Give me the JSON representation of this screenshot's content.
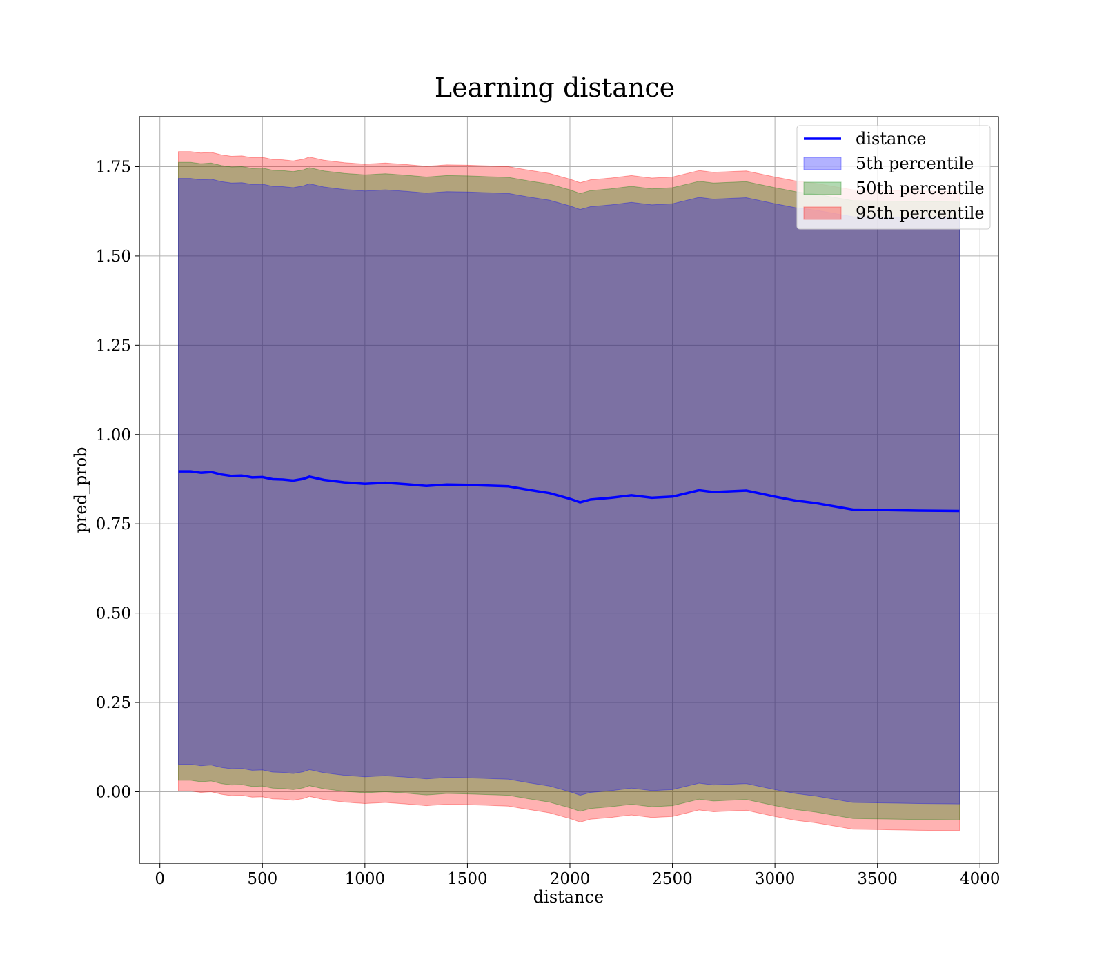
{
  "chart_data": {
    "type": "line",
    "title": "Learning distance",
    "xlabel": "distance",
    "ylabel": "pred_prob",
    "xlim": [
      -100,
      4090
    ],
    "ylim": [
      -0.2,
      1.89
    ],
    "xticks": [
      0,
      500,
      1000,
      1500,
      2000,
      2500,
      3000,
      3500,
      4000
    ],
    "xtick_labels": [
      "0",
      "500",
      "1000",
      "1500",
      "2000",
      "2500",
      "3000",
      "3500",
      "4000"
    ],
    "yticks": [
      0.0,
      0.25,
      0.5,
      0.75,
      1.0,
      1.25,
      1.5,
      1.75
    ],
    "ytick_labels": [
      "0.00",
      "0.25",
      "0.50",
      "0.75",
      "1.00",
      "1.25",
      "1.50",
      "1.75"
    ],
    "grid": true,
    "legend_position": "top-right",
    "x": [
      90,
      150,
      200,
      250,
      300,
      350,
      400,
      430,
      450,
      500,
      550,
      600,
      650,
      700,
      730,
      800,
      900,
      1000,
      1100,
      1200,
      1300,
      1400,
      1500,
      1600,
      1700,
      1800,
      1900,
      2000,
      2050,
      2100,
      2200,
      2300,
      2400,
      2500,
      2630,
      2700,
      2860,
      3000,
      3100,
      3200,
      3380,
      3500,
      3700,
      3900
    ],
    "series": [
      {
        "name": "distance",
        "kind": "line",
        "color": "#0000ff",
        "y": [
          0.897,
          0.897,
          0.893,
          0.895,
          0.888,
          0.884,
          0.885,
          0.882,
          0.88,
          0.881,
          0.875,
          0.874,
          0.871,
          0.876,
          0.882,
          0.873,
          0.866,
          0.862,
          0.865,
          0.861,
          0.856,
          0.86,
          0.859,
          0.857,
          0.855,
          0.845,
          0.836,
          0.82,
          0.81,
          0.818,
          0.823,
          0.83,
          0.823,
          0.826,
          0.844,
          0.839,
          0.843,
          0.826,
          0.815,
          0.808,
          0.79,
          0.789,
          0.787,
          0.786
        ]
      },
      {
        "name": "5th percentile",
        "kind": "band",
        "color": "#0000ff",
        "offset": 0.82
      },
      {
        "name": "50th percentile",
        "kind": "band",
        "color": "#008000",
        "offset": 0.865
      },
      {
        "name": "95th percentile",
        "kind": "band",
        "color": "#ff0000",
        "offset": 0.895
      }
    ]
  }
}
